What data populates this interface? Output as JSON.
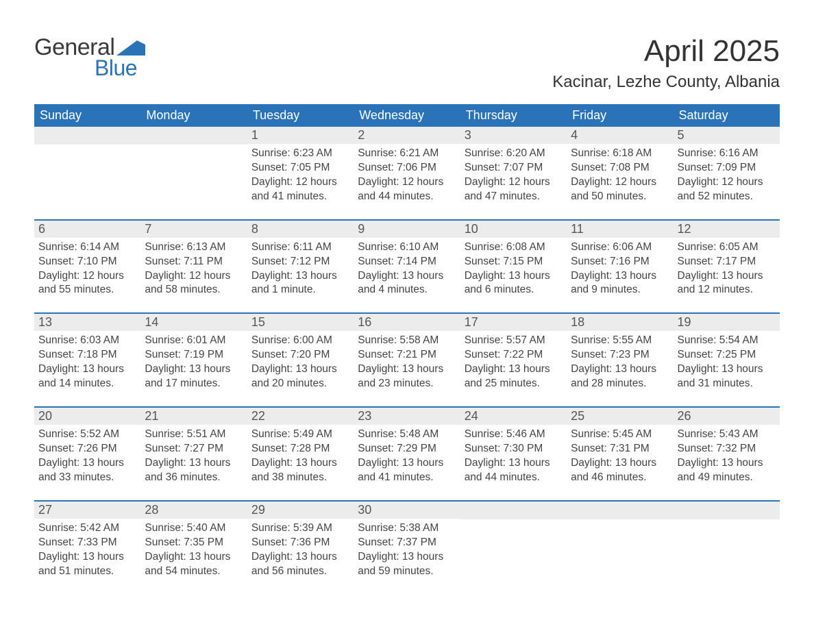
{
  "logo": {
    "top": "General",
    "bottom": "Blue",
    "swoosh_color": "#2a73b8"
  },
  "title": "April 2025",
  "location": "Kacinar, Lezhe County, Albania",
  "colors": {
    "header_bg": "#2a73b8",
    "header_text": "#ffffff",
    "daynum_bg": "#ececec",
    "body_text": "#444444",
    "rule": "#2a73b8"
  },
  "days_of_week": [
    "Sunday",
    "Monday",
    "Tuesday",
    "Wednesday",
    "Thursday",
    "Friday",
    "Saturday"
  ],
  "weeks": [
    [
      null,
      null,
      {
        "n": "1",
        "sr": "Sunrise: 6:23 AM",
        "ss": "Sunset: 7:05 PM",
        "d1": "Daylight: 12 hours",
        "d2": "and 41 minutes."
      },
      {
        "n": "2",
        "sr": "Sunrise: 6:21 AM",
        "ss": "Sunset: 7:06 PM",
        "d1": "Daylight: 12 hours",
        "d2": "and 44 minutes."
      },
      {
        "n": "3",
        "sr": "Sunrise: 6:20 AM",
        "ss": "Sunset: 7:07 PM",
        "d1": "Daylight: 12 hours",
        "d2": "and 47 minutes."
      },
      {
        "n": "4",
        "sr": "Sunrise: 6:18 AM",
        "ss": "Sunset: 7:08 PM",
        "d1": "Daylight: 12 hours",
        "d2": "and 50 minutes."
      },
      {
        "n": "5",
        "sr": "Sunrise: 6:16 AM",
        "ss": "Sunset: 7:09 PM",
        "d1": "Daylight: 12 hours",
        "d2": "and 52 minutes."
      }
    ],
    [
      {
        "n": "6",
        "sr": "Sunrise: 6:14 AM",
        "ss": "Sunset: 7:10 PM",
        "d1": "Daylight: 12 hours",
        "d2": "and 55 minutes."
      },
      {
        "n": "7",
        "sr": "Sunrise: 6:13 AM",
        "ss": "Sunset: 7:11 PM",
        "d1": "Daylight: 12 hours",
        "d2": "and 58 minutes."
      },
      {
        "n": "8",
        "sr": "Sunrise: 6:11 AM",
        "ss": "Sunset: 7:12 PM",
        "d1": "Daylight: 13 hours",
        "d2": "and 1 minute."
      },
      {
        "n": "9",
        "sr": "Sunrise: 6:10 AM",
        "ss": "Sunset: 7:14 PM",
        "d1": "Daylight: 13 hours",
        "d2": "and 4 minutes."
      },
      {
        "n": "10",
        "sr": "Sunrise: 6:08 AM",
        "ss": "Sunset: 7:15 PM",
        "d1": "Daylight: 13 hours",
        "d2": "and 6 minutes."
      },
      {
        "n": "11",
        "sr": "Sunrise: 6:06 AM",
        "ss": "Sunset: 7:16 PM",
        "d1": "Daylight: 13 hours",
        "d2": "and 9 minutes."
      },
      {
        "n": "12",
        "sr": "Sunrise: 6:05 AM",
        "ss": "Sunset: 7:17 PM",
        "d1": "Daylight: 13 hours",
        "d2": "and 12 minutes."
      }
    ],
    [
      {
        "n": "13",
        "sr": "Sunrise: 6:03 AM",
        "ss": "Sunset: 7:18 PM",
        "d1": "Daylight: 13 hours",
        "d2": "and 14 minutes."
      },
      {
        "n": "14",
        "sr": "Sunrise: 6:01 AM",
        "ss": "Sunset: 7:19 PM",
        "d1": "Daylight: 13 hours",
        "d2": "and 17 minutes."
      },
      {
        "n": "15",
        "sr": "Sunrise: 6:00 AM",
        "ss": "Sunset: 7:20 PM",
        "d1": "Daylight: 13 hours",
        "d2": "and 20 minutes."
      },
      {
        "n": "16",
        "sr": "Sunrise: 5:58 AM",
        "ss": "Sunset: 7:21 PM",
        "d1": "Daylight: 13 hours",
        "d2": "and 23 minutes."
      },
      {
        "n": "17",
        "sr": "Sunrise: 5:57 AM",
        "ss": "Sunset: 7:22 PM",
        "d1": "Daylight: 13 hours",
        "d2": "and 25 minutes."
      },
      {
        "n": "18",
        "sr": "Sunrise: 5:55 AM",
        "ss": "Sunset: 7:23 PM",
        "d1": "Daylight: 13 hours",
        "d2": "and 28 minutes."
      },
      {
        "n": "19",
        "sr": "Sunrise: 5:54 AM",
        "ss": "Sunset: 7:25 PM",
        "d1": "Daylight: 13 hours",
        "d2": "and 31 minutes."
      }
    ],
    [
      {
        "n": "20",
        "sr": "Sunrise: 5:52 AM",
        "ss": "Sunset: 7:26 PM",
        "d1": "Daylight: 13 hours",
        "d2": "and 33 minutes."
      },
      {
        "n": "21",
        "sr": "Sunrise: 5:51 AM",
        "ss": "Sunset: 7:27 PM",
        "d1": "Daylight: 13 hours",
        "d2": "and 36 minutes."
      },
      {
        "n": "22",
        "sr": "Sunrise: 5:49 AM",
        "ss": "Sunset: 7:28 PM",
        "d1": "Daylight: 13 hours",
        "d2": "and 38 minutes."
      },
      {
        "n": "23",
        "sr": "Sunrise: 5:48 AM",
        "ss": "Sunset: 7:29 PM",
        "d1": "Daylight: 13 hours",
        "d2": "and 41 minutes."
      },
      {
        "n": "24",
        "sr": "Sunrise: 5:46 AM",
        "ss": "Sunset: 7:30 PM",
        "d1": "Daylight: 13 hours",
        "d2": "and 44 minutes."
      },
      {
        "n": "25",
        "sr": "Sunrise: 5:45 AM",
        "ss": "Sunset: 7:31 PM",
        "d1": "Daylight: 13 hours",
        "d2": "and 46 minutes."
      },
      {
        "n": "26",
        "sr": "Sunrise: 5:43 AM",
        "ss": "Sunset: 7:32 PM",
        "d1": "Daylight: 13 hours",
        "d2": "and 49 minutes."
      }
    ],
    [
      {
        "n": "27",
        "sr": "Sunrise: 5:42 AM",
        "ss": "Sunset: 7:33 PM",
        "d1": "Daylight: 13 hours",
        "d2": "and 51 minutes."
      },
      {
        "n": "28",
        "sr": "Sunrise: 5:40 AM",
        "ss": "Sunset: 7:35 PM",
        "d1": "Daylight: 13 hours",
        "d2": "and 54 minutes."
      },
      {
        "n": "29",
        "sr": "Sunrise: 5:39 AM",
        "ss": "Sunset: 7:36 PM",
        "d1": "Daylight: 13 hours",
        "d2": "and 56 minutes."
      },
      {
        "n": "30",
        "sr": "Sunrise: 5:38 AM",
        "ss": "Sunset: 7:37 PM",
        "d1": "Daylight: 13 hours",
        "d2": "and 59 minutes."
      },
      null,
      null,
      null
    ]
  ]
}
